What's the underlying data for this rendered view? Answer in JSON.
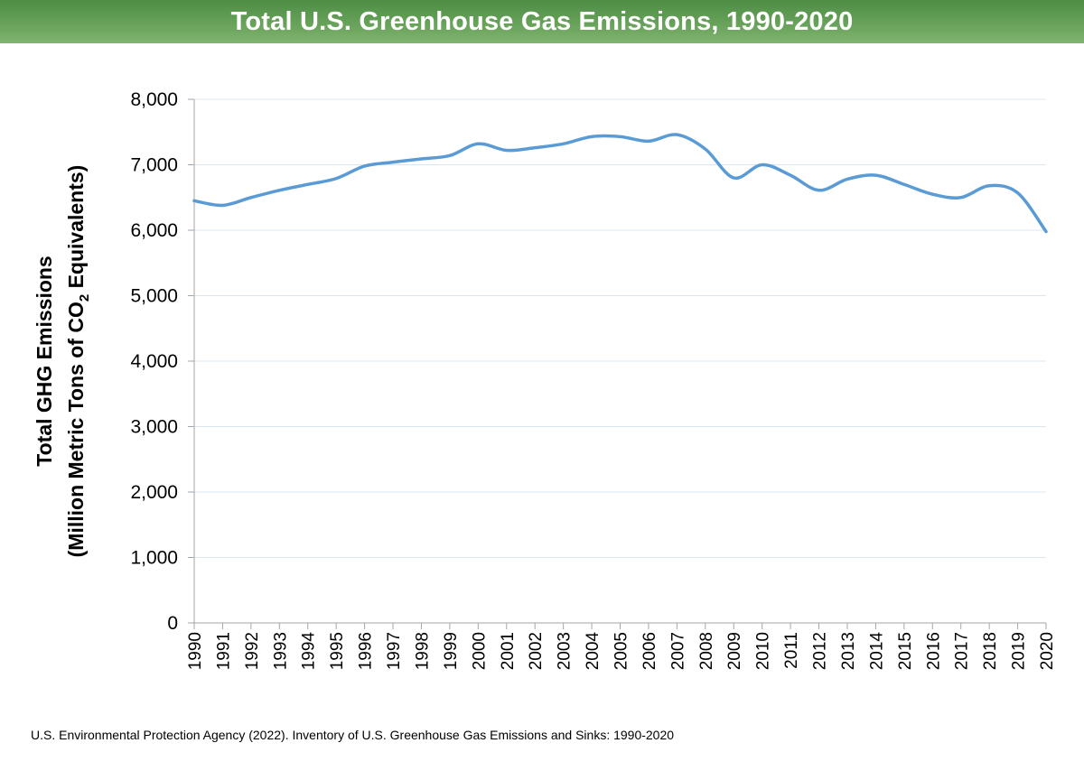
{
  "banner": {
    "title": "Total U.S. Greenhouse Gas Emissions, 1990-2020"
  },
  "source_note": "U.S. Environmental Protection Agency (2022). Inventory of U.S. Greenhouse Gas Emissions and Sinks: 1990-2020",
  "colors": {
    "banner": "#5b9a4f",
    "line": "#5b9bd5",
    "grid": "#d9e7f3",
    "axis": "#a6a6a6"
  },
  "chart_data": {
    "type": "line",
    "title": "Total U.S. Greenhouse Gas Emissions, 1990-2020",
    "ylabel_line1": "Total GHG  Emissions",
    "ylabel_line2_pre": "(Million Metric Tons of CO",
    "ylabel_line2_sub": "2",
    "ylabel_line2_post": " Equivalents)",
    "ylim": [
      0,
      8000
    ],
    "y_ticks": [
      "0",
      "1,000",
      "2,000",
      "3,000",
      "4,000",
      "5,000",
      "6,000",
      "7,000",
      "8,000"
    ],
    "grid": true,
    "legend": "none",
    "x": [
      "1990",
      "1991",
      "1992",
      "1993",
      "1994",
      "1995",
      "1996",
      "1997",
      "1998",
      "1999",
      "2000",
      "2001",
      "2002",
      "2003",
      "2004",
      "2005",
      "2006",
      "2007",
      "2008",
      "2009",
      "2010",
      "2011",
      "2012",
      "2013",
      "2014",
      "2015",
      "2016",
      "2017",
      "2018",
      "2019",
      "2020"
    ],
    "series": [
      {
        "values": [
          6450,
          6380,
          6500,
          6610,
          6700,
          6790,
          6980,
          7040,
          7090,
          7140,
          7320,
          7220,
          7260,
          7320,
          7430,
          7430,
          7360,
          7460,
          7240,
          6800,
          7000,
          6840,
          6610,
          6780,
          6840,
          6700,
          6550,
          6500,
          6680,
          6570,
          5980
        ]
      }
    ]
  }
}
